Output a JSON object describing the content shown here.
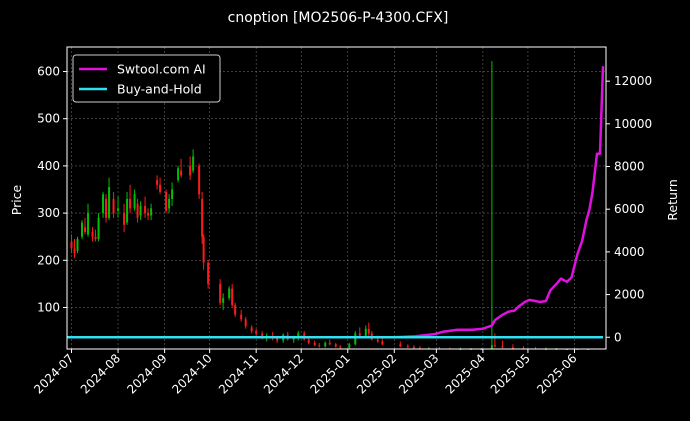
{
  "chart_data": {
    "type": "line",
    "title": "cnoption [MO2506-P-4300.CFX]",
    "xlabel": "",
    "ylabel_left": "Price",
    "ylabel_right": "Return",
    "x_range": [
      "2024-06-28",
      "2025-06-22"
    ],
    "y_left_range": [
      12,
      652
    ],
    "y_right_range": [
      -550,
      13600
    ],
    "x_ticks": [
      "2024-07",
      "2024-08",
      "2024-09",
      "2024-10",
      "2024-11",
      "2024-12",
      "2025-01",
      "2025-02",
      "2025-03",
      "2025-04",
      "2025-05",
      "2025-06"
    ],
    "y_left_ticks": [
      100,
      200,
      300,
      400,
      500,
      600
    ],
    "y_right_ticks": [
      0,
      2000,
      4000,
      6000,
      8000,
      10000,
      12000
    ],
    "grid": true,
    "legend_position": "top-left",
    "legend": [
      {
        "label": "Swtool.com AI",
        "color": "#e010e0"
      },
      {
        "label": "Buy-and-Hold",
        "color": "#30e0f0"
      }
    ],
    "candle_colors": {
      "up": "#00c000",
      "down": "#ff1a1a"
    },
    "ohlc": [
      [
        "2024-07-01",
        240,
        255,
        215,
        225
      ],
      [
        "2024-07-03",
        225,
        245,
        205,
        215
      ],
      [
        "2024-07-05",
        220,
        250,
        215,
        245
      ],
      [
        "2024-07-08",
        250,
        285,
        245,
        280
      ],
      [
        "2024-07-10",
        270,
        290,
        255,
        260
      ],
      [
        "2024-07-12",
        255,
        320,
        250,
        300
      ],
      [
        "2024-07-15",
        260,
        270,
        240,
        250
      ],
      [
        "2024-07-17",
        250,
        265,
        240,
        245
      ],
      [
        "2024-07-19",
        245,
        300,
        240,
        290
      ],
      [
        "2024-07-22",
        300,
        345,
        290,
        340
      ],
      [
        "2024-07-24",
        330,
        340,
        280,
        290
      ],
      [
        "2024-07-26",
        290,
        375,
        285,
        355
      ],
      [
        "2024-07-29",
        330,
        345,
        290,
        300
      ],
      [
        "2024-08-01",
        305,
        335,
        290,
        310
      ],
      [
        "2024-08-05",
        300,
        320,
        260,
        275
      ],
      [
        "2024-08-07",
        280,
        345,
        275,
        330
      ],
      [
        "2024-08-09",
        330,
        360,
        300,
        310
      ],
      [
        "2024-08-12",
        310,
        350,
        305,
        340
      ],
      [
        "2024-08-14",
        320,
        330,
        280,
        290
      ],
      [
        "2024-08-16",
        295,
        325,
        285,
        315
      ],
      [
        "2024-08-19",
        315,
        335,
        290,
        300
      ],
      [
        "2024-08-21",
        300,
        310,
        285,
        295
      ],
      [
        "2024-08-23",
        295,
        320,
        285,
        310
      ],
      [
        "2024-08-27",
        370,
        380,
        350,
        360
      ],
      [
        "2024-08-29",
        360,
        375,
        340,
        345
      ],
      [
        "2024-09-02",
        345,
        350,
        300,
        305
      ],
      [
        "2024-09-04",
        310,
        340,
        300,
        330
      ],
      [
        "2024-09-06",
        330,
        365,
        315,
        350
      ],
      [
        "2024-09-10",
        370,
        400,
        365,
        395
      ],
      [
        "2024-09-12",
        390,
        415,
        375,
        380
      ],
      [
        "2024-09-18",
        400,
        420,
        370,
        380
      ],
      [
        "2024-09-20",
        390,
        435,
        385,
        420
      ],
      [
        "2024-09-24",
        400,
        405,
        330,
        340
      ],
      [
        "2024-09-26",
        330,
        345,
        235,
        250
      ],
      [
        "2024-09-27",
        250,
        255,
        180,
        195
      ],
      [
        "2024-09-30",
        195,
        200,
        140,
        150
      ],
      [
        "2024-10-08",
        150,
        160,
        105,
        110
      ],
      [
        "2024-10-10",
        110,
        130,
        95,
        120
      ],
      [
        "2024-10-14",
        120,
        145,
        115,
        140
      ],
      [
        "2024-10-16",
        140,
        150,
        100,
        105
      ],
      [
        "2024-10-18",
        105,
        110,
        80,
        85
      ],
      [
        "2024-10-22",
        85,
        95,
        70,
        75
      ],
      [
        "2024-10-25",
        75,
        80,
        55,
        60
      ],
      [
        "2024-10-29",
        58,
        62,
        45,
        50
      ],
      [
        "2024-11-01",
        50,
        55,
        40,
        45
      ],
      [
        "2024-11-05",
        45,
        50,
        32,
        35
      ],
      [
        "2024-11-08",
        35,
        45,
        28,
        40
      ],
      [
        "2024-11-12",
        40,
        48,
        30,
        35
      ],
      [
        "2024-11-15",
        35,
        40,
        25,
        30
      ],
      [
        "2024-11-19",
        30,
        45,
        25,
        42
      ],
      [
        "2024-11-22",
        42,
        48,
        30,
        32
      ],
      [
        "2024-11-26",
        32,
        40,
        25,
        35
      ],
      [
        "2024-11-29",
        35,
        50,
        30,
        45
      ],
      [
        "2024-12-03",
        45,
        50,
        30,
        32
      ],
      [
        "2024-12-06",
        32,
        35,
        22,
        25
      ],
      [
        "2024-12-10",
        25,
        30,
        18,
        20
      ],
      [
        "2024-12-13",
        20,
        25,
        15,
        18
      ],
      [
        "2024-12-17",
        18,
        28,
        15,
        25
      ],
      [
        "2024-12-20",
        25,
        32,
        20,
        22
      ],
      [
        "2024-12-24",
        22,
        25,
        15,
        17
      ],
      [
        "2024-12-27",
        17,
        20,
        13,
        15
      ],
      [
        "2025-01-02",
        15,
        25,
        13,
        22
      ],
      [
        "2025-01-06",
        22,
        50,
        20,
        45
      ],
      [
        "2025-01-09",
        45,
        58,
        35,
        40
      ],
      [
        "2025-01-13",
        40,
        62,
        35,
        55
      ],
      [
        "2025-01-15",
        55,
        68,
        40,
        45
      ],
      [
        "2025-01-17",
        45,
        50,
        30,
        32
      ],
      [
        "2025-01-21",
        32,
        40,
        25,
        28
      ],
      [
        "2025-01-24",
        28,
        35,
        20,
        22
      ],
      [
        "2025-02-05",
        22,
        28,
        16,
        18
      ],
      [
        "2025-02-10",
        18,
        22,
        14,
        16
      ],
      [
        "2025-02-14",
        16,
        20,
        13,
        14
      ],
      [
        "2025-02-18",
        14,
        18,
        12,
        13
      ],
      [
        "2025-02-24",
        13,
        16,
        12,
        13
      ],
      [
        "2025-03-03",
        13,
        16,
        12,
        13
      ],
      [
        "2025-03-10",
        13,
        15,
        12,
        12
      ],
      [
        "2025-03-17",
        12,
        15,
        12,
        12
      ],
      [
        "2025-03-24",
        12,
        14,
        12,
        12
      ],
      [
        "2025-03-31",
        12,
        14,
        12,
        12
      ],
      [
        "2025-04-07",
        12,
        622,
        12,
        20
      ],
      [
        "2025-04-09",
        20,
        45,
        15,
        18
      ],
      [
        "2025-04-14",
        18,
        30,
        14,
        15
      ],
      [
        "2025-04-21",
        15,
        22,
        13,
        14
      ],
      [
        "2025-04-28",
        14,
        18,
        12,
        13
      ],
      [
        "2025-05-06",
        13,
        16,
        12,
        12
      ],
      [
        "2025-05-13",
        12,
        15,
        12,
        12
      ],
      [
        "2025-05-20",
        12,
        14,
        12,
        12
      ],
      [
        "2025-05-27",
        12,
        13,
        12,
        12
      ],
      [
        "2025-06-03",
        12,
        13,
        12,
        12
      ],
      [
        "2025-06-10",
        12,
        13,
        12,
        12
      ]
    ],
    "series": [
      {
        "name": "Swtool.com AI",
        "axis": "right",
        "color": "#e010e0",
        "x": [
          "2025-02-01",
          "2025-02-15",
          "2025-02-28",
          "2025-03-05",
          "2025-03-15",
          "2025-03-25",
          "2025-04-01",
          "2025-04-07",
          "2025-04-09",
          "2025-04-14",
          "2025-04-18",
          "2025-04-22",
          "2025-04-25",
          "2025-04-29",
          "2025-05-02",
          "2025-05-06",
          "2025-05-09",
          "2025-05-13",
          "2025-05-16",
          "2025-05-20",
          "2025-05-23",
          "2025-05-27",
          "2025-05-30",
          "2025-06-03",
          "2025-06-06",
          "2025-06-09",
          "2025-06-11",
          "2025-06-13",
          "2025-06-16",
          "2025-06-18",
          "2025-06-20"
        ],
        "values": [
          0,
          50,
          150,
          250,
          350,
          350,
          400,
          550,
          800,
          1050,
          1200,
          1250,
          1450,
          1650,
          1750,
          1700,
          1650,
          1700,
          2200,
          2500,
          2750,
          2600,
          2800,
          3900,
          4500,
          5500,
          6000,
          6800,
          8600,
          8600,
          12700
        ]
      },
      {
        "name": "Buy-and-Hold",
        "axis": "right",
        "color": "#30e0f0",
        "x": [
          "2024-06-28",
          "2025-06-20"
        ],
        "values": [
          0,
          0
        ]
      }
    ]
  }
}
